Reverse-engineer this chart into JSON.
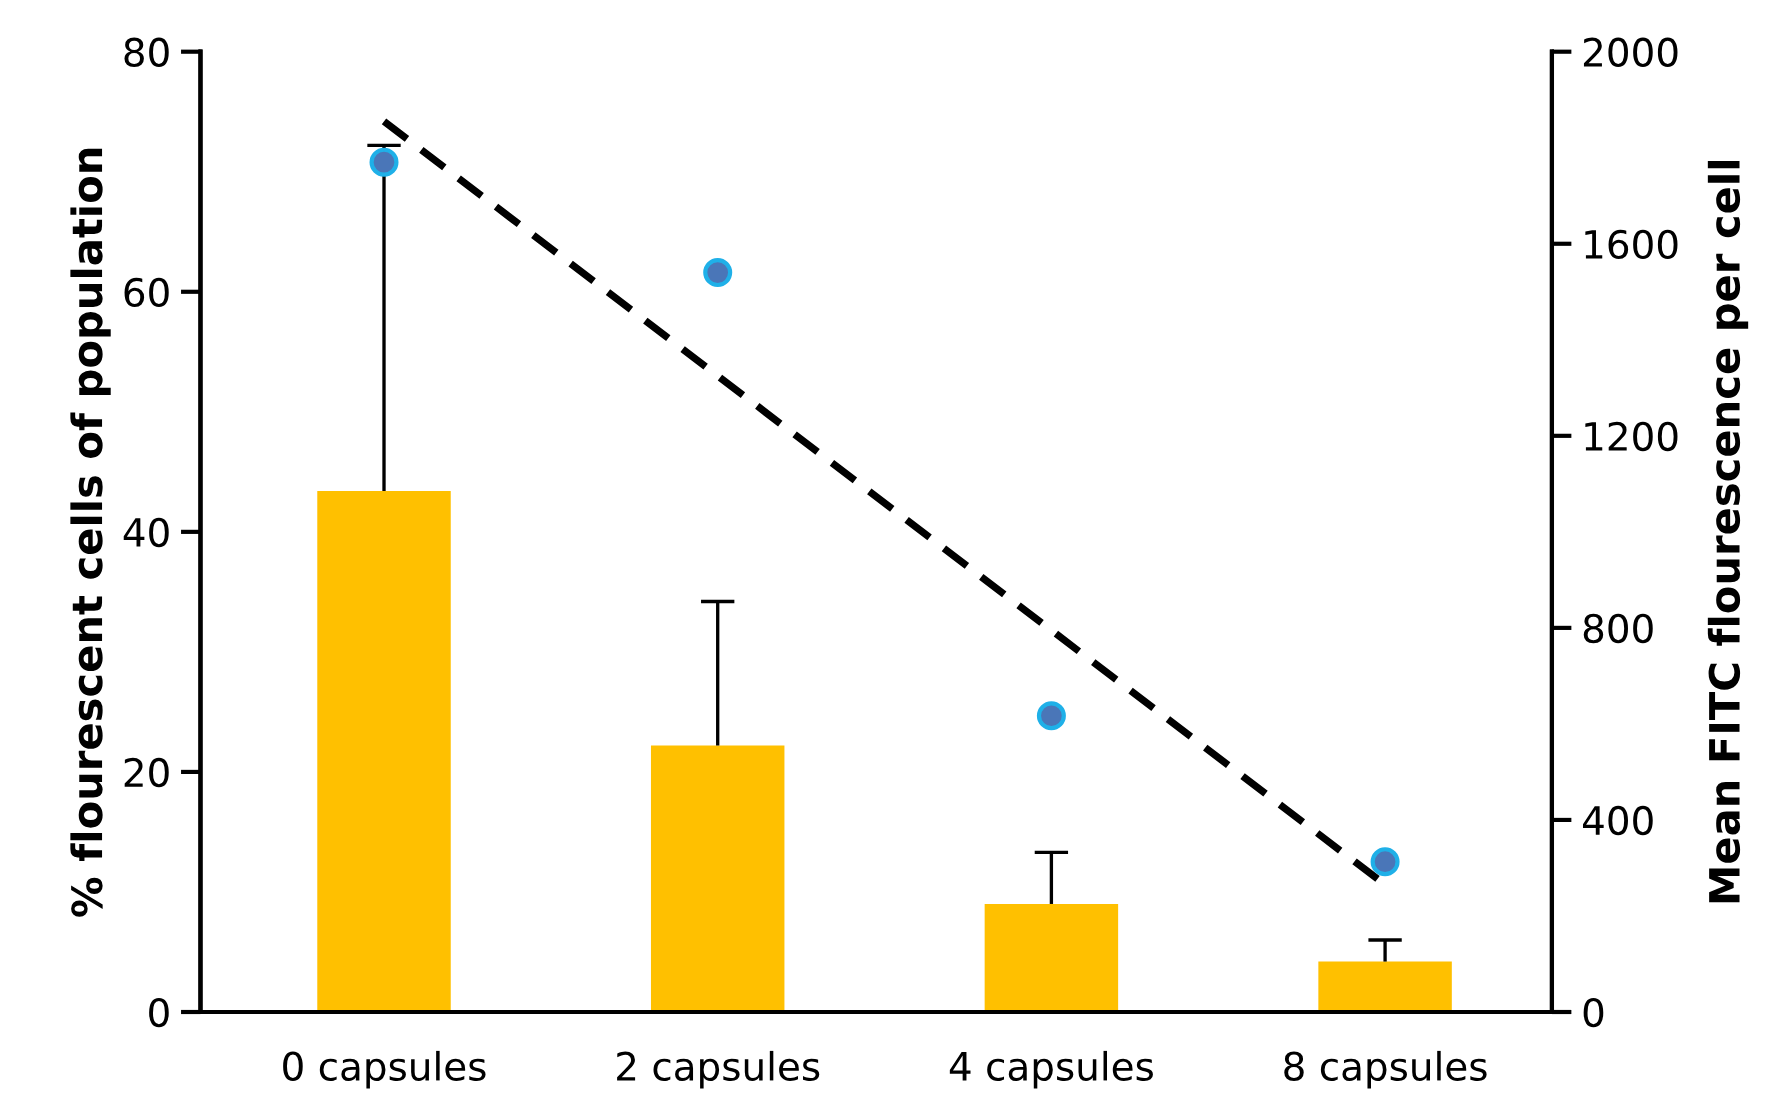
{
  "chart_data": {
    "type": "bar",
    "ylabel": "% flourescent cells of population",
    "y2label": "Mean FITC flourescence per cell",
    "categories": [
      "0 capsules",
      "2 capsules",
      "4 capsules",
      "8 capsules"
    ],
    "series": [
      {
        "color": "#ffc000",
        "values": [
          43.4,
          22.2,
          9.0,
          4.2
        ],
        "errors": [
          [
            43.4,
            72.2
          ],
          [
            22.2,
            34.2
          ],
          [
            9.0,
            13.3
          ],
          [
            4.2,
            6.0
          ]
        ]
      },
      {
        "type": "scatter",
        "axis": "y2",
        "color": "#4a76b8",
        "marker": "circle",
        "values": [
          1770,
          1540,
          617,
          313
        ]
      },
      {
        "type": "line",
        "axis": "y2",
        "color": "#000000",
        "line_style": "dashed",
        "values": [
          1855,
          1325,
          795,
          265
        ]
      }
    ],
    "ylim": [
      0,
      80
    ],
    "yticks": [
      0,
      20,
      40,
      60,
      80
    ],
    "y2lim": [
      0,
      2000
    ],
    "y2ticks": [
      0,
      400,
      800,
      1200,
      1600,
      2000
    ],
    "grid": false,
    "legend": false
  }
}
